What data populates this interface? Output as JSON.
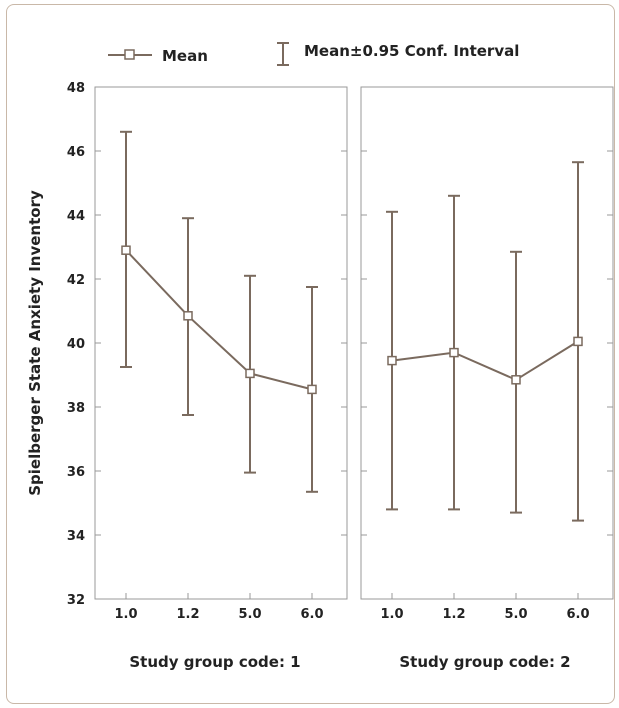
{
  "colors": {
    "series": "#7a6a5e",
    "frame": "#c9b8a8",
    "axis": "#999999",
    "text": "#222222"
  },
  "legend": {
    "mean_label": "Mean",
    "ci_label": "Mean±0.95 Conf. Interval",
    "placement": "top"
  },
  "chart_data": [
    {
      "type": "line",
      "panel_title": "Study group code: 1",
      "categories": [
        "1.0",
        "1.2",
        "5.0",
        "6.0"
      ],
      "ylabel": "Spielberger State Anxiety Inventory",
      "ylim": [
        32,
        48
      ],
      "yticks": [
        32,
        34,
        36,
        38,
        40,
        42,
        44,
        46,
        48
      ],
      "grid": false,
      "series": [
        {
          "name": "Mean",
          "values": [
            42.9,
            40.85,
            39.05,
            38.55
          ],
          "ci_low": [
            39.25,
            37.75,
            35.95,
            35.35
          ],
          "ci_high": [
            46.6,
            43.9,
            42.1,
            41.75
          ]
        }
      ]
    },
    {
      "type": "line",
      "panel_title": "Study group code: 2",
      "categories": [
        "1.0",
        "1.2",
        "5.0",
        "6.0"
      ],
      "ylim": [
        32,
        48
      ],
      "grid": false,
      "series": [
        {
          "name": "Mean",
          "values": [
            39.45,
            39.7,
            38.85,
            40.05
          ],
          "ci_low": [
            34.8,
            34.8,
            34.7,
            34.45
          ],
          "ci_high": [
            44.1,
            44.6,
            42.85,
            45.65
          ]
        }
      ]
    }
  ]
}
